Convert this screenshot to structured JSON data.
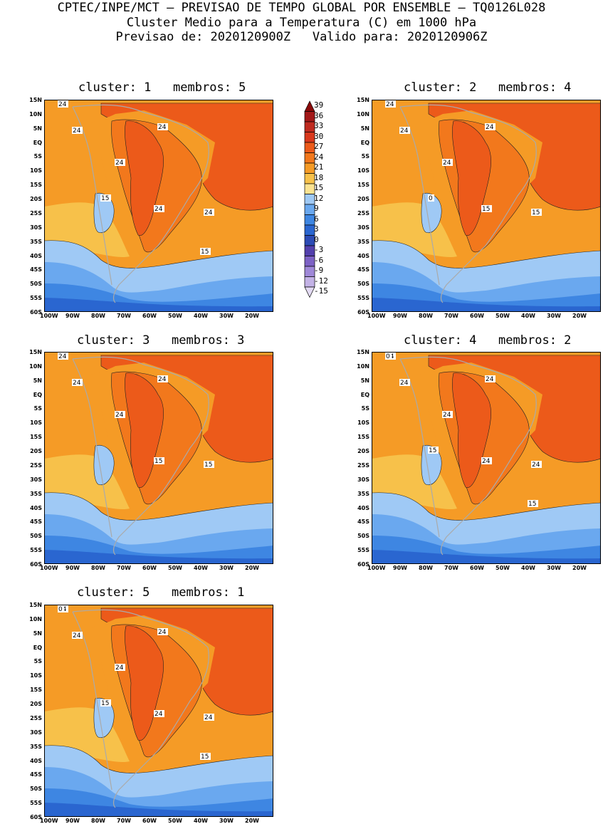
{
  "header": {
    "line1": "CPTEC/INPE/MCT – PREVISAO DE TEMPO GLOBAL POR ENSEMBLE – TQ0126L028",
    "line2": "Cluster Medio para a Temperatura (C) em 1000 hPa",
    "line3": "Previsao de: 2020120900Z   Valido para: 2020120906Z"
  },
  "axes": {
    "lat_labels": [
      "15N",
      "10N",
      "5N",
      "EQ",
      "5S",
      "10S",
      "15S",
      "20S",
      "25S",
      "30S",
      "35S",
      "40S",
      "45S",
      "50S",
      "55S",
      "60S"
    ],
    "lon_labels": [
      "100W",
      "90W",
      "80W",
      "70W",
      "60W",
      "50W",
      "40W",
      "30W",
      "20W"
    ]
  },
  "colorbar": {
    "labels": [
      "39",
      "36",
      "33",
      "30",
      "27",
      "24",
      "21",
      "18",
      "15",
      "12",
      "9",
      "6",
      "3",
      "0",
      "-3",
      "-6",
      "-9",
      "-12",
      "-15"
    ],
    "colors": [
      "#8a0a0a",
      "#a31818",
      "#bf2a1f",
      "#d9381c",
      "#ec5a1a",
      "#f2781c",
      "#f59b26",
      "#f7c14a",
      "#fbe391",
      "#9fc9f5",
      "#6aa8ef",
      "#3e86e2",
      "#2a66d0",
      "#2c4bb5",
      "#5340ad",
      "#7d62c5",
      "#9f88d8",
      "#c3b2e6",
      "#e3daf3"
    ]
  },
  "panels": [
    {
      "title": "cluster: 1   membros: 5",
      "contours": [
        "24",
        "24",
        "24",
        "24",
        "24",
        "24",
        "15",
        "15"
      ]
    },
    {
      "title": "cluster: 2   membros: 4",
      "contours": [
        "24",
        "24",
        "24",
        "24",
        "15",
        "15",
        "0"
      ]
    },
    {
      "title": "cluster: 3   membros: 3",
      "contours": [
        "24",
        "24",
        "24",
        "24",
        "15",
        "15"
      ]
    },
    {
      "title": "cluster: 4   membros: 2",
      "contours": [
        "24",
        "24",
        "24",
        "24",
        "24",
        "24",
        "15",
        "15",
        "0"
      ]
    },
    {
      "title": "cluster: 5   membros: 1",
      "contours": [
        "24",
        "24",
        "24",
        "24",
        "24",
        "24",
        "15",
        "15",
        "0"
      ]
    }
  ]
}
